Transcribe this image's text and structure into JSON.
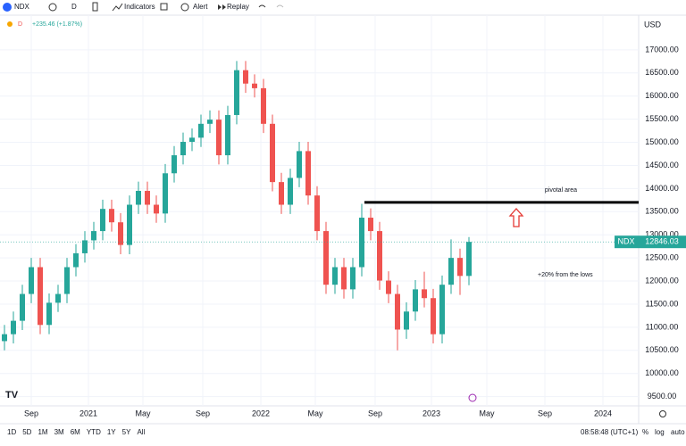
{
  "toolbar": {
    "symbol": "NDX",
    "interval": "D",
    "buttons": [
      "Indicators",
      "Alert",
      "Replay"
    ]
  },
  "chart_data": {
    "type": "candlestick",
    "legend_interval": "D",
    "change": "+235.46 (+1.87%)",
    "currency": "USD",
    "open": [
      10700,
      10850,
      11140,
      11720,
      12300,
      11050,
      11530,
      11720,
      12300,
      12600,
      12880,
      13080,
      13560,
      13270,
      12780,
      13650,
      13950,
      13650,
      13460,
      14330,
      14720,
      15010,
      15100,
      15400,
      15490,
      14720,
      15590,
      16560,
      16270,
      16170,
      15400,
      14140,
      13650,
      14230,
      14810,
      13850,
      13080,
      11920,
      12300,
      11820,
      12300,
      13370,
      13080,
      12010,
      11720,
      10950,
      11340,
      11820,
      11630,
      10850,
      11920,
      12500,
      12110
    ],
    "high": [
      11050,
      11340,
      11920,
      12500,
      12500,
      11730,
      11920,
      12500,
      12800,
      13080,
      13280,
      13760,
      13760,
      13470,
      13850,
      14150,
      14150,
      13850,
      14530,
      14920,
      15210,
      15300,
      15600,
      15690,
      15690,
      15790,
      16760,
      16760,
      16470,
      16370,
      15600,
      14340,
      14430,
      15010,
      15010,
      14050,
      13280,
      12500,
      12500,
      12500,
      13670,
      13570,
      13280,
      12210,
      11920,
      11540,
      12020,
      12200,
      11830,
      12120,
      12900,
      12700,
      12950
    ],
    "low": [
      10500,
      10650,
      10940,
      11520,
      10850,
      10850,
      11330,
      11520,
      12100,
      12400,
      12680,
      12880,
      13070,
      12580,
      12580,
      13450,
      13450,
      13260,
      13260,
      14130,
      14520,
      14810,
      14900,
      15200,
      14520,
      14520,
      15390,
      16070,
      15970,
      15200,
      13940,
      13450,
      13450,
      14030,
      13650,
      12880,
      11720,
      11720,
      11620,
      11620,
      12100,
      12880,
      11810,
      11520,
      10500,
      10750,
      11140,
      11430,
      10650,
      10650,
      11720,
      11700,
      11910
    ],
    "close": [
      10850,
      11140,
      11720,
      12300,
      11050,
      11530,
      11720,
      12300,
      12600,
      12880,
      13080,
      13560,
      13270,
      12780,
      13650,
      13950,
      13650,
      13460,
      14330,
      14720,
      15010,
      15100,
      15400,
      15490,
      14720,
      15590,
      16560,
      16270,
      16170,
      15400,
      14140,
      13650,
      14230,
      14810,
      13850,
      13080,
      11920,
      12300,
      11820,
      12300,
      13370,
      13080,
      12010,
      11720,
      10950,
      11340,
      11820,
      11630,
      10850,
      11920,
      12500,
      12110,
      12846
    ],
    "colors": {
      "up": "#26a69a",
      "down": "#ef5350"
    },
    "xlim": [
      -0.5,
      71
    ],
    "xticks": [
      {
        "value": 3,
        "label": "Sep"
      },
      {
        "value": 9.4,
        "label": "2021"
      },
      {
        "value": 15.5,
        "label": "May"
      },
      {
        "value": 22.2,
        "label": "Sep"
      },
      {
        "value": 28.7,
        "label": "2022"
      },
      {
        "value": 34.8,
        "label": "May"
      },
      {
        "value": 41.5,
        "label": "Sep"
      },
      {
        "value": 47.8,
        "label": "2023"
      },
      {
        "value": 54,
        "label": "May"
      },
      {
        "value": 60.5,
        "label": "Sep"
      },
      {
        "value": 67,
        "label": "2024"
      }
    ],
    "ylim": [
      9300,
      17750
    ],
    "yticks": [
      {
        "value": 9500,
        "label": "9500.00"
      },
      {
        "value": 10000,
        "label": "10000.00"
      },
      {
        "value": 10500,
        "label": "10500.00"
      },
      {
        "value": 11000,
        "label": "11000.00"
      },
      {
        "value": 11500,
        "label": "11500.00"
      },
      {
        "value": 12000,
        "label": "12000.00"
      },
      {
        "value": 12500,
        "label": "12500.00"
      },
      {
        "value": 13000,
        "label": "13000.00"
      },
      {
        "value": 13500,
        "label": "13500.00"
      },
      {
        "value": 14000,
        "label": "14000.00"
      },
      {
        "value": 14500,
        "label": "14500.00"
      },
      {
        "value": 15000,
        "label": "15000.00"
      },
      {
        "value": 15500,
        "label": "15500.00"
      },
      {
        "value": 16000,
        "label": "16000.00"
      },
      {
        "value": 16500,
        "label": "16500.00"
      },
      {
        "value": 17000,
        "label": "17000.00"
      }
    ],
    "grid": true,
    "last_price_name": "NDX",
    "last_price": 12846.03,
    "last_price_color": "#26a69a",
    "pivot": {
      "text": "pivotal area",
      "value": 13700,
      "x_start": 40.3
    },
    "note": "+20% from the lows"
  },
  "bottom_bar": {
    "ranges": [
      "1D",
      "5D",
      "1M",
      "3M",
      "6M",
      "YTD",
      "1Y",
      "5Y",
      "All"
    ],
    "time": "08:58:48 (UTC+1)",
    "options": [
      "%",
      "log",
      "auto"
    ]
  }
}
